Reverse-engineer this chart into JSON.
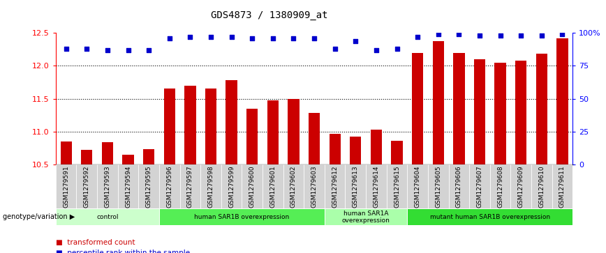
{
  "title": "GDS4873 / 1380909_at",
  "samples": [
    "GSM1279591",
    "GSM1279592",
    "GSM1279593",
    "GSM1279594",
    "GSM1279595",
    "GSM1279596",
    "GSM1279597",
    "GSM1279598",
    "GSM1279599",
    "GSM1279600",
    "GSM1279601",
    "GSM1279602",
    "GSM1279603",
    "GSM1279612",
    "GSM1279613",
    "GSM1279614",
    "GSM1279615",
    "GSM1279604",
    "GSM1279605",
    "GSM1279606",
    "GSM1279607",
    "GSM1279608",
    "GSM1279609",
    "GSM1279610",
    "GSM1279611"
  ],
  "bar_values": [
    10.85,
    10.72,
    10.84,
    10.65,
    10.73,
    11.65,
    11.7,
    11.65,
    11.78,
    11.35,
    11.47,
    11.5,
    11.28,
    10.97,
    10.92,
    11.03,
    10.86,
    12.2,
    12.38,
    12.2,
    12.1,
    12.05,
    12.08,
    12.18,
    12.42
  ],
  "percentile_values": [
    88,
    88,
    87,
    87,
    87,
    96,
    97,
    97,
    97,
    96,
    96,
    96,
    96,
    88,
    94,
    87,
    88,
    97,
    99,
    99,
    98,
    98,
    98,
    98,
    99
  ],
  "groups": [
    {
      "label": "control",
      "start": 0,
      "end": 5,
      "color": "#ccffcc"
    },
    {
      "label": "human SAR1B overexpression",
      "start": 5,
      "end": 13,
      "color": "#55ee55"
    },
    {
      "label": "human SAR1A\noverexpression",
      "start": 13,
      "end": 17,
      "color": "#aaffaa"
    },
    {
      "label": "mutant human SAR1B overexpression",
      "start": 17,
      "end": 25,
      "color": "#33dd33"
    }
  ],
  "bar_color": "#cc0000",
  "dot_color": "#0000cc",
  "ylim_left": [
    10.5,
    12.5
  ],
  "yticks_left": [
    10.5,
    11.0,
    11.5,
    12.0,
    12.5
  ],
  "ylim_right": [
    0,
    100
  ],
  "yticks_right": [
    0,
    25,
    50,
    75,
    100
  ],
  "ylabel_right_labels": [
    "0",
    "25",
    "50",
    "75",
    "100%"
  ],
  "bar_width": 0.55,
  "dot_size": 18,
  "dot_marker": "s",
  "xlabel_fontsize": 6.5,
  "title_fontsize": 10,
  "tick_fontsize": 8,
  "legend_bar_label": "transformed count",
  "legend_dot_label": "percentile rank within the sample",
  "genotype_label": "genotype/variation"
}
